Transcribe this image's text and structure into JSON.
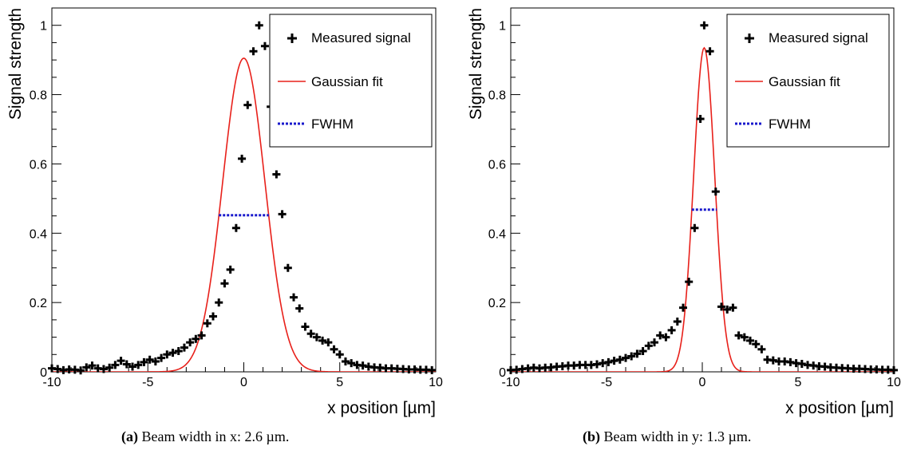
{
  "chart_data": [
    {
      "type": "scatter",
      "xlabel": "x position [µm]",
      "ylabel": "Signal strength",
      "xlim": [
        -10,
        10
      ],
      "ylim": [
        0,
        1.05
      ],
      "xticks": [
        "-10",
        "-5",
        "0",
        "5",
        "10"
      ],
      "yticks": [
        "0",
        "0.2",
        "0.4",
        "0.6",
        "0.8",
        "1"
      ],
      "legend_position": "top-right",
      "legend": [
        "Measured signal",
        "Gaussian fit",
        "FWHM"
      ],
      "series": [
        {
          "name": "Measured signal",
          "color": "#000000",
          "points": [
            [
              -10,
              0.01
            ],
            [
              -9.7,
              0.008
            ],
            [
              -9.4,
              0.005
            ],
            [
              -9.1,
              0.007
            ],
            [
              -8.8,
              0.006
            ],
            [
              -8.5,
              0.004
            ],
            [
              -8.2,
              0.013
            ],
            [
              -7.9,
              0.018
            ],
            [
              -7.6,
              0.01
            ],
            [
              -7.3,
              0.008
            ],
            [
              -7.0,
              0.012
            ],
            [
              -6.7,
              0.02
            ],
            [
              -6.4,
              0.032
            ],
            [
              -6.1,
              0.022
            ],
            [
              -5.8,
              0.015
            ],
            [
              -5.5,
              0.02
            ],
            [
              -5.2,
              0.028
            ],
            [
              -4.9,
              0.035
            ],
            [
              -4.6,
              0.03
            ],
            [
              -4.3,
              0.04
            ],
            [
              -4.0,
              0.05
            ],
            [
              -3.7,
              0.055
            ],
            [
              -3.4,
              0.06
            ],
            [
              -3.1,
              0.07
            ],
            [
              -2.8,
              0.085
            ],
            [
              -2.5,
              0.095
            ],
            [
              -2.2,
              0.105
            ],
            [
              -1.9,
              0.14
            ],
            [
              -1.6,
              0.16
            ],
            [
              -1.3,
              0.2
            ],
            [
              -1.0,
              0.255
            ],
            [
              -0.7,
              0.295
            ],
            [
              -0.4,
              0.415
            ],
            [
              -0.1,
              0.615
            ],
            [
              0.2,
              0.77
            ],
            [
              0.5,
              0.925
            ],
            [
              0.8,
              1.0
            ],
            [
              1.1,
              0.94
            ],
            [
              1.4,
              0.765
            ],
            [
              1.7,
              0.57
            ],
            [
              2.0,
              0.455
            ],
            [
              2.3,
              0.3
            ],
            [
              2.6,
              0.215
            ],
            [
              2.9,
              0.183
            ],
            [
              3.2,
              0.13
            ],
            [
              3.5,
              0.11
            ],
            [
              3.8,
              0.1
            ],
            [
              4.1,
              0.09
            ],
            [
              4.4,
              0.085
            ],
            [
              4.7,
              0.065
            ],
            [
              5.0,
              0.05
            ],
            [
              5.3,
              0.03
            ],
            [
              5.6,
              0.025
            ],
            [
              5.9,
              0.02
            ],
            [
              6.2,
              0.018
            ],
            [
              6.5,
              0.015
            ],
            [
              6.8,
              0.013
            ],
            [
              7.1,
              0.012
            ],
            [
              7.4,
              0.01
            ],
            [
              7.7,
              0.01
            ],
            [
              8.0,
              0.009
            ],
            [
              8.3,
              0.008
            ],
            [
              8.6,
              0.007
            ],
            [
              8.9,
              0.007
            ],
            [
              9.2,
              0.006
            ],
            [
              9.5,
              0.006
            ],
            [
              9.8,
              0.005
            ]
          ]
        },
        {
          "name": "Gaussian fit",
          "color": "#e8201a",
          "amplitude": 0.905,
          "mean": 0.0,
          "sigma": 1.1
        },
        {
          "name": "FWHM",
          "color": "#1a1acc",
          "x_range": [
            -1.3,
            1.3
          ],
          "y": 0.452
        }
      ],
      "caption_label": "(a)",
      "caption_text": " Beam width in x: 2.6 µm."
    },
    {
      "type": "scatter",
      "xlabel": "x position [µm]",
      "ylabel": "Signal strength",
      "xlim": [
        -10,
        10
      ],
      "ylim": [
        0,
        1.05
      ],
      "xticks": [
        "-10",
        "-5",
        "0",
        "5",
        "10"
      ],
      "yticks": [
        "0",
        "0.2",
        "0.4",
        "0.6",
        "0.8",
        "1"
      ],
      "legend_position": "top-right",
      "legend": [
        "Measured signal",
        "Gaussian fit",
        "FWHM"
      ],
      "series": [
        {
          "name": "Measured signal",
          "color": "#000000",
          "points": [
            [
              -10,
              0.005
            ],
            [
              -9.7,
              0.006
            ],
            [
              -9.4,
              0.008
            ],
            [
              -9.1,
              0.01
            ],
            [
              -8.8,
              0.012
            ],
            [
              -8.5,
              0.01
            ],
            [
              -8.2,
              0.012
            ],
            [
              -7.9,
              0.013
            ],
            [
              -7.6,
              0.015
            ],
            [
              -7.3,
              0.016
            ],
            [
              -7.0,
              0.018
            ],
            [
              -6.7,
              0.018
            ],
            [
              -6.4,
              0.02
            ],
            [
              -6.1,
              0.02
            ],
            [
              -5.8,
              0.02
            ],
            [
              -5.5,
              0.022
            ],
            [
              -5.2,
              0.025
            ],
            [
              -4.9,
              0.028
            ],
            [
              -4.6,
              0.032
            ],
            [
              -4.3,
              0.035
            ],
            [
              -4.0,
              0.04
            ],
            [
              -3.7,
              0.045
            ],
            [
              -3.4,
              0.052
            ],
            [
              -3.1,
              0.06
            ],
            [
              -2.8,
              0.075
            ],
            [
              -2.5,
              0.085
            ],
            [
              -2.2,
              0.105
            ],
            [
              -1.9,
              0.1
            ],
            [
              -1.6,
              0.12
            ],
            [
              -1.3,
              0.145
            ],
            [
              -1.0,
              0.185
            ],
            [
              -0.7,
              0.26
            ],
            [
              -0.4,
              0.415
            ],
            [
              -0.1,
              0.73
            ],
            [
              0.1,
              1.0
            ],
            [
              0.4,
              0.925
            ],
            [
              0.7,
              0.52
            ],
            [
              1.0,
              0.188
            ],
            [
              1.3,
              0.18
            ],
            [
              1.6,
              0.185
            ],
            [
              1.9,
              0.105
            ],
            [
              2.2,
              0.1
            ],
            [
              2.5,
              0.09
            ],
            [
              2.8,
              0.08
            ],
            [
              3.1,
              0.065
            ],
            [
              3.4,
              0.035
            ],
            [
              3.7,
              0.033
            ],
            [
              4.0,
              0.03
            ],
            [
              4.3,
              0.03
            ],
            [
              4.6,
              0.028
            ],
            [
              4.9,
              0.025
            ],
            [
              5.2,
              0.023
            ],
            [
              5.5,
              0.02
            ],
            [
              5.8,
              0.018
            ],
            [
              6.1,
              0.016
            ],
            [
              6.4,
              0.015
            ],
            [
              6.7,
              0.013
            ],
            [
              7.0,
              0.012
            ],
            [
              7.3,
              0.011
            ],
            [
              7.6,
              0.01
            ],
            [
              7.9,
              0.009
            ],
            [
              8.2,
              0.009
            ],
            [
              8.5,
              0.008
            ],
            [
              8.8,
              0.007
            ],
            [
              9.1,
              0.007
            ],
            [
              9.4,
              0.006
            ],
            [
              9.7,
              0.006
            ],
            [
              10,
              0.005
            ]
          ]
        },
        {
          "name": "Gaussian fit",
          "color": "#e8201a",
          "amplitude": 0.935,
          "mean": 0.1,
          "sigma": 0.55
        },
        {
          "name": "FWHM",
          "color": "#1a1acc",
          "x_range": [
            -0.55,
            0.75
          ],
          "y": 0.468
        }
      ],
      "caption_label": "(b)",
      "caption_text": " Beam width in y: 1.3 µm."
    }
  ]
}
